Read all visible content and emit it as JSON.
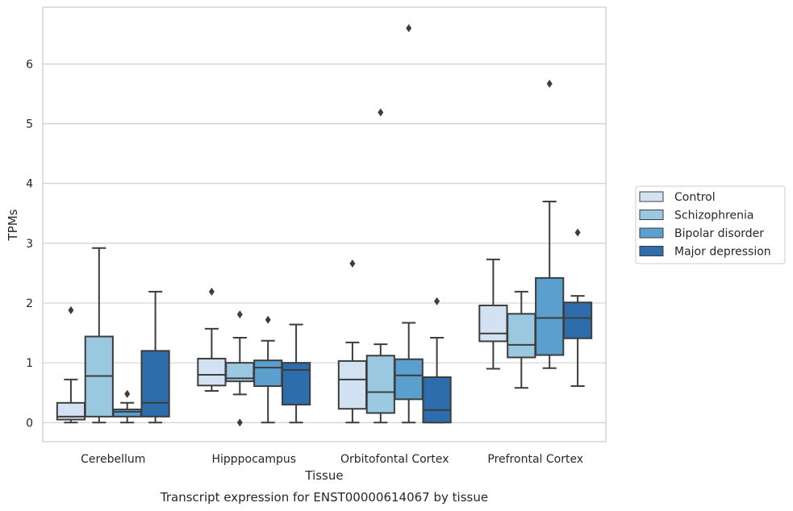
{
  "caption": "Transcript expression for ENST00000614067 by tissue",
  "chart_data": {
    "type": "box",
    "xlabel": "Tissue",
    "ylabel": "TPMs",
    "ylim": [
      -0.32,
      6.95
    ],
    "yticks": [
      0,
      1,
      2,
      3,
      4,
      5,
      6
    ],
    "grid": "horizontal",
    "legend_position": "right",
    "categories": [
      "Cerebellum",
      "Hipppocampus",
      "Orbitofontal Cortex",
      "Prefrontal Cortex"
    ],
    "series": [
      {
        "name": "Control",
        "color": "#d2e2f2",
        "boxes": [
          {
            "whislo": 0.0,
            "q1": 0.05,
            "med": 0.1,
            "q3": 0.33,
            "whishi": 0.72,
            "fliers": [
              1.88
            ]
          },
          {
            "whislo": 0.53,
            "q1": 0.62,
            "med": 0.8,
            "q3": 1.07,
            "whishi": 1.57,
            "fliers": [
              2.19
            ]
          },
          {
            "whislo": 0.0,
            "q1": 0.23,
            "med": 0.72,
            "q3": 1.03,
            "whishi": 1.34,
            "fliers": [
              2.66
            ]
          },
          {
            "whislo": 0.9,
            "q1": 1.36,
            "med": 1.49,
            "q3": 1.96,
            "whishi": 2.73,
            "fliers": []
          }
        ]
      },
      {
        "name": "Schizophrenia",
        "color": "#9ac8e0",
        "boxes": [
          {
            "whislo": 0.0,
            "q1": 0.1,
            "med": 0.78,
            "q3": 1.44,
            "whishi": 2.92,
            "fliers": []
          },
          {
            "whislo": 0.47,
            "q1": 0.69,
            "med": 0.74,
            "q3": 1.0,
            "whishi": 1.42,
            "fliers": [
              1.81,
              0.0
            ]
          },
          {
            "whislo": 0.0,
            "q1": 0.16,
            "med": 0.51,
            "q3": 1.12,
            "whishi": 1.31,
            "fliers": [
              5.19
            ]
          },
          {
            "whislo": 0.58,
            "q1": 1.09,
            "med": 1.3,
            "q3": 1.82,
            "whishi": 2.19,
            "fliers": []
          }
        ]
      },
      {
        "name": "Bipolar disorder",
        "color": "#5a9fcd",
        "boxes": [
          {
            "whislo": 0.0,
            "q1": 0.1,
            "med": 0.18,
            "q3": 0.22,
            "whishi": 0.33,
            "fliers": [
              0.48
            ]
          },
          {
            "whislo": 0.0,
            "q1": 0.61,
            "med": 0.92,
            "q3": 1.04,
            "whishi": 1.37,
            "fliers": [
              1.72
            ]
          },
          {
            "whislo": 0.0,
            "q1": 0.39,
            "med": 0.79,
            "q3": 1.06,
            "whishi": 1.67,
            "fliers": [
              6.6
            ]
          },
          {
            "whislo": 0.91,
            "q1": 1.13,
            "med": 1.75,
            "q3": 2.42,
            "whishi": 3.7,
            "fliers": [
              5.67
            ]
          }
        ]
      },
      {
        "name": "Major depression",
        "color": "#2e6dac",
        "boxes": [
          {
            "whislo": 0.0,
            "q1": 0.1,
            "med": 0.33,
            "q3": 1.2,
            "whishi": 2.19,
            "fliers": []
          },
          {
            "whislo": 0.0,
            "q1": 0.3,
            "med": 0.88,
            "q3": 1.0,
            "whishi": 1.64,
            "fliers": []
          },
          {
            "whislo": 0.0,
            "q1": 0.0,
            "med": 0.21,
            "q3": 0.76,
            "whishi": 1.42,
            "fliers": [
              2.03
            ]
          },
          {
            "whislo": 0.61,
            "q1": 1.41,
            "med": 1.75,
            "q3": 2.01,
            "whishi": 2.12,
            "fliers": [
              3.18
            ]
          }
        ]
      }
    ]
  }
}
